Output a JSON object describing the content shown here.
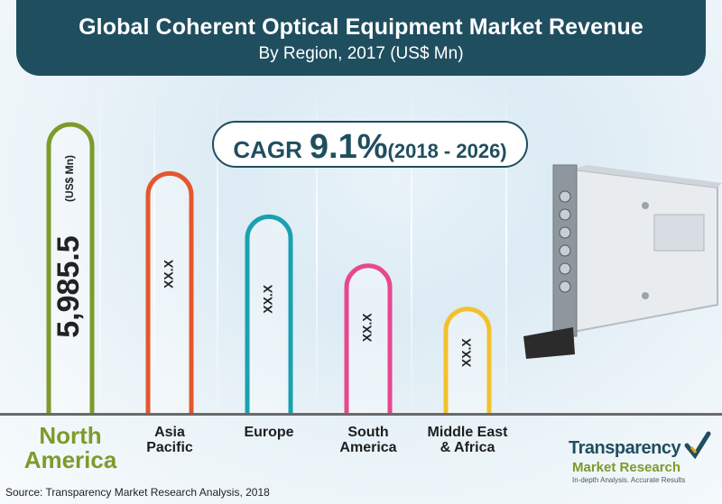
{
  "header": {
    "title": "Global Coherent Optical Equipment Market Revenue",
    "subtitle": "By Region, 2017 (US$ Mn)"
  },
  "cagr": {
    "label": "CAGR",
    "value": "9.1%",
    "period": "(2018 - 2026)"
  },
  "unit_label": "(US$ Mn)",
  "source": "Source: Transparency Market Research Analysis, 2018",
  "logo": {
    "line1": "Transparency",
    "line2": "Market Research",
    "tagline": "In-depth Analysis. Accurate Results"
  },
  "colors": {
    "header_bg": "#1f4e5f",
    "north_america": "#7d9b2b",
    "asia_pacific": "#e4572e",
    "europe": "#1aa1b0",
    "south_america": "#e8478f",
    "middle_east_africa": "#f2c12e"
  },
  "chart_data": {
    "type": "bar",
    "categories": [
      "North America",
      "Asia Pacific",
      "Europe",
      "South America",
      "Middle East & Africa"
    ],
    "category_lines": [
      [
        "North",
        "America"
      ],
      [
        "Asia",
        "Pacific"
      ],
      [
        "Europe"
      ],
      [
        "South",
        "America"
      ],
      [
        "Middle East",
        "& Africa"
      ]
    ],
    "value_labels": [
      "5,985.5",
      "XX.X",
      "XX.X",
      "XX.X",
      "XX.X"
    ],
    "values": [
      5985.5,
      null,
      null,
      null,
      null
    ],
    "relative_heights": [
      1.0,
      0.83,
      0.68,
      0.51,
      0.36
    ],
    "title": "Global Coherent Optical Equipment Market Revenue",
    "subtitle": "By Region, 2017 (US$ Mn)",
    "xlabel": "",
    "ylabel": "(US$ Mn)",
    "grid": false,
    "legend": "none"
  }
}
